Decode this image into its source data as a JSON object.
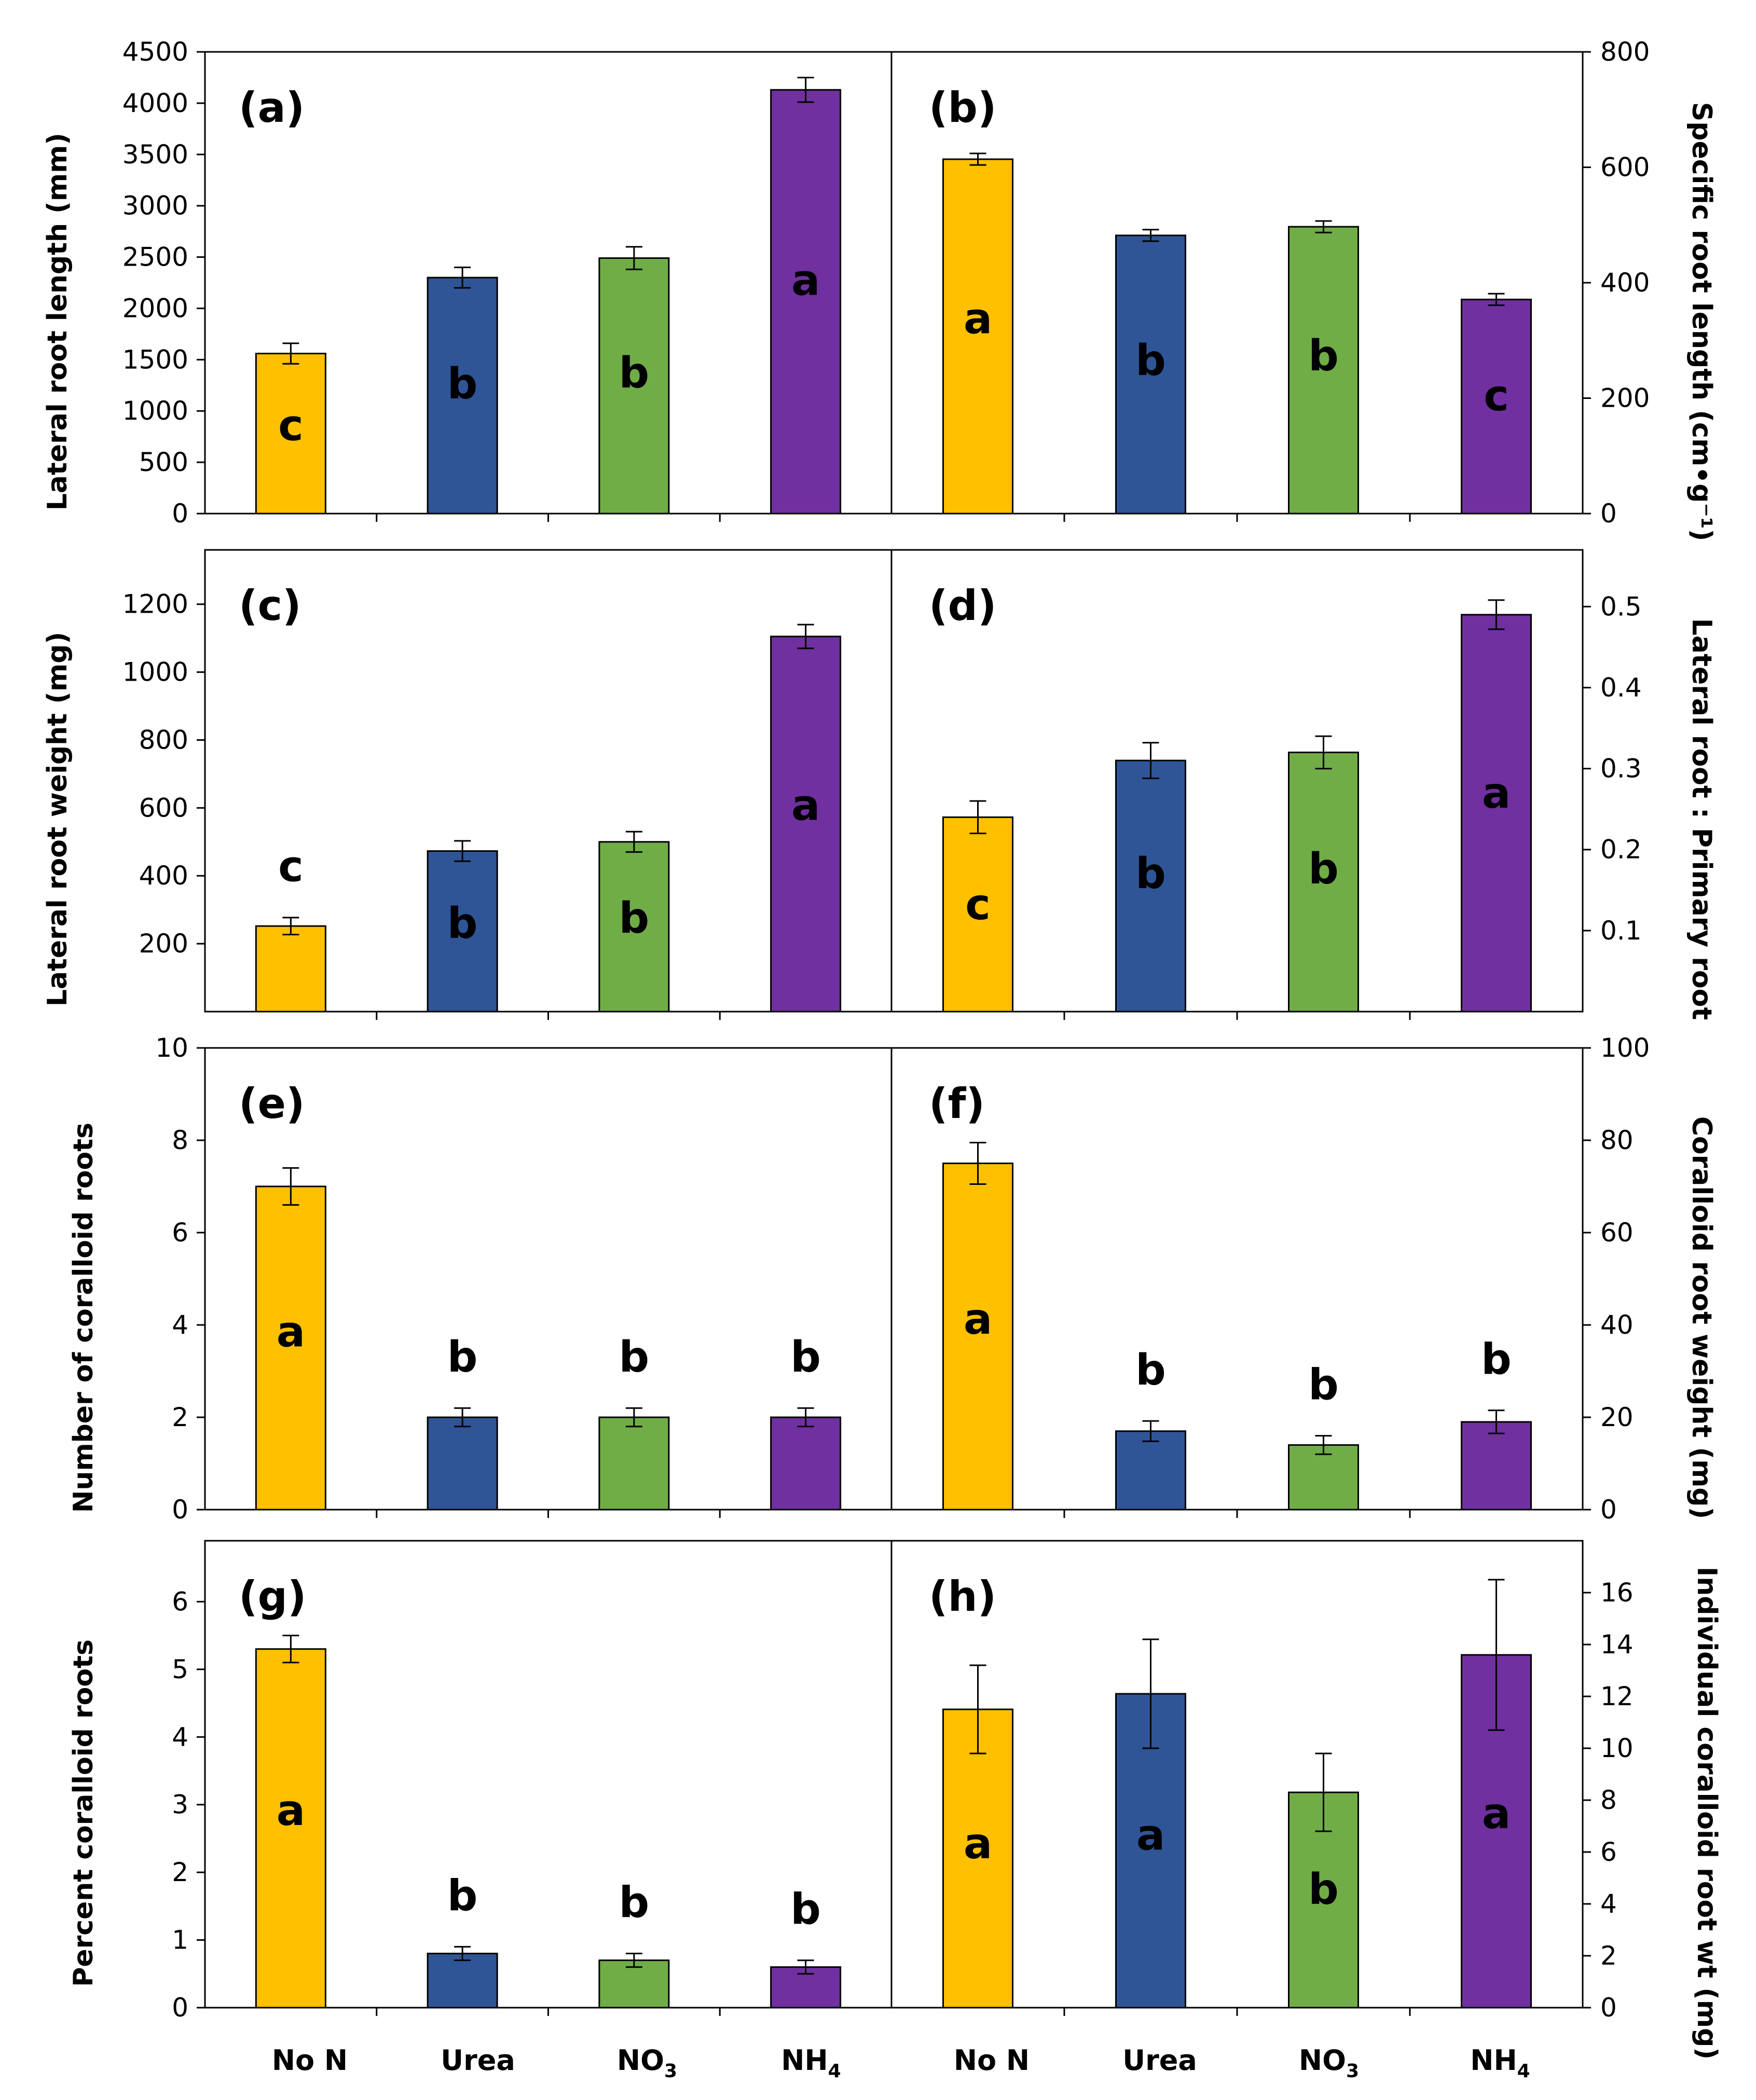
{
  "chart_data": [
    {
      "type": "bar",
      "panel_label": "(a)",
      "ylabel": "Lateral root length (mm)",
      "axis_side": "left",
      "ylim": [
        0,
        4500
      ],
      "yticks": [
        0,
        500,
        1000,
        1500,
        2000,
        2500,
        3000,
        3500,
        4000,
        4500
      ],
      "categories": [
        "No N",
        "Urea",
        "NO3",
        "NH4"
      ],
      "values": [
        1560,
        2300,
        2490,
        4130
      ],
      "errors": [
        100,
        100,
        110,
        120
      ],
      "letters": [
        "c",
        "b",
        "b",
        "a"
      ],
      "letter_position": "inside"
    },
    {
      "type": "bar",
      "panel_label": "(b)",
      "ylabel": "Specific root length (cm•g⁻¹)",
      "axis_side": "right",
      "ylim": [
        0,
        800
      ],
      "yticks": [
        0,
        200,
        400,
        600,
        800
      ],
      "categories": [
        "No N",
        "Urea",
        "NO3",
        "NH4"
      ],
      "values": [
        614,
        482,
        497,
        371
      ],
      "errors": [
        10,
        10,
        10,
        10
      ],
      "letters": [
        "a",
        "b",
        "b",
        "c"
      ],
      "letter_position": "inside"
    },
    {
      "type": "bar",
      "panel_label": "(c)",
      "ylabel": "Lateral root weight (mg)",
      "axis_side": "left",
      "ylim": [
        0,
        1360
      ],
      "yticks": [
        200,
        400,
        600,
        800,
        1000,
        1200
      ],
      "categories": [
        "No N",
        "Urea",
        "NO3",
        "NH4"
      ],
      "values": [
        252,
        473,
        500,
        1105
      ],
      "errors": [
        25,
        30,
        30,
        35
      ],
      "letters": [
        "c",
        "b",
        "b",
        "a"
      ],
      "letter_position": "above"
    },
    {
      "type": "bar",
      "panel_label": "(d)",
      "ylabel": "Lateral root : Primary root",
      "axis_side": "right",
      "ylim": [
        0,
        0.57
      ],
      "yticks": [
        0.1,
        0.2,
        0.3,
        0.4,
        0.5
      ],
      "categories": [
        "No N",
        "Urea",
        "NO3",
        "NH4"
      ],
      "values": [
        0.24,
        0.31,
        0.32,
        0.49
      ],
      "errors": [
        0.02,
        0.022,
        0.02,
        0.018
      ],
      "letters": [
        "c",
        "b",
        "b",
        "a"
      ],
      "letter_position": "above"
    },
    {
      "type": "bar",
      "panel_label": "(e)",
      "ylabel": "Number of coralloid roots",
      "axis_side": "left",
      "ylim": [
        0,
        10
      ],
      "yticks": [
        0,
        2,
        4,
        6,
        8,
        10
      ],
      "categories": [
        "No N",
        "Urea",
        "NO3",
        "NH4"
      ],
      "values": [
        7.0,
        2.0,
        2.0,
        2.0
      ],
      "errors": [
        0.4,
        0.2,
        0.2,
        0.2
      ],
      "letters": [
        "a",
        "b",
        "b",
        "b"
      ],
      "letter_position": "mixed"
    },
    {
      "type": "bar",
      "panel_label": "(f)",
      "ylabel": "Coralloid root weight (mg)",
      "axis_side": "right",
      "ylim": [
        0,
        100
      ],
      "yticks": [
        0,
        20,
        40,
        60,
        80,
        100
      ],
      "categories": [
        "No N",
        "Urea",
        "NO3",
        "NH4"
      ],
      "values": [
        75,
        17,
        14,
        19
      ],
      "errors": [
        4.5,
        2.2,
        2.0,
        2.5
      ],
      "letters": [
        "a",
        "b",
        "b",
        "b"
      ],
      "letter_position": "mixed"
    },
    {
      "type": "bar",
      "panel_label": "(g)",
      "ylabel": "Percent coralloid roots",
      "axis_side": "left",
      "ylim": [
        0,
        6.9
      ],
      "yticks": [
        0,
        1,
        2,
        3,
        4,
        5,
        6
      ],
      "categories": [
        "No N",
        "Urea",
        "NO3",
        "NH4"
      ],
      "values": [
        5.3,
        0.8,
        0.7,
        0.6
      ],
      "errors": [
        0.2,
        0.1,
        0.1,
        0.1
      ],
      "letters": [
        "a",
        "b",
        "b",
        "b"
      ],
      "letter_position": "mixed"
    },
    {
      "type": "bar",
      "panel_label": "(h)",
      "ylabel": "Individual coralloid root wt (mg)",
      "axis_side": "right",
      "ylim": [
        0,
        18
      ],
      "yticks": [
        0,
        2,
        4,
        6,
        8,
        10,
        12,
        14,
        16
      ],
      "categories": [
        "No N",
        "Urea",
        "NO3",
        "NH4"
      ],
      "values": [
        11.5,
        12.1,
        8.3,
        13.6
      ],
      "errors": [
        1.7,
        2.1,
        1.5,
        2.9
      ],
      "letters": [
        "a",
        "a",
        "b",
        "a"
      ],
      "letter_position": "inside"
    }
  ],
  "x_labels": {
    "left": [
      {
        "main": "No N",
        "sub": ""
      },
      {
        "main": "Urea",
        "sub": ""
      },
      {
        "main": "NO",
        "sub": "3"
      },
      {
        "main": "NH",
        "sub": "4"
      }
    ],
    "right": [
      {
        "main": "No N",
        "sub": ""
      },
      {
        "main": "Urea",
        "sub": ""
      },
      {
        "main": "NO",
        "sub": "3"
      },
      {
        "main": "NH",
        "sub": "4"
      }
    ]
  },
  "colors": {
    "bars": [
      "#FFC000",
      "#2F5597",
      "#70AD47",
      "#7030A0"
    ],
    "outline": "#000000",
    "background": "#ffffff"
  }
}
